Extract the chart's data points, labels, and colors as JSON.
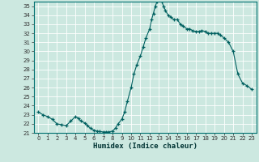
{
  "title": "",
  "xlabel": "Humidex (Indice chaleur)",
  "ylabel": "",
  "background_color": "#cce8e0",
  "grid_color": "#b8d8d0",
  "line_color": "#006060",
  "marker_color": "#006060",
  "ylim": [
    21,
    35.5
  ],
  "xlim": [
    -0.5,
    23.5
  ],
  "yticks": [
    21,
    22,
    23,
    24,
    25,
    26,
    27,
    28,
    29,
    30,
    31,
    32,
    33,
    34,
    35
  ],
  "xticks": [
    0,
    1,
    2,
    3,
    4,
    5,
    6,
    7,
    8,
    9,
    10,
    11,
    12,
    13,
    14,
    15,
    16,
    17,
    18,
    19,
    20,
    21,
    22,
    23
  ],
  "x": [
    0,
    0.5,
    1,
    1.5,
    2,
    2.5,
    3,
    3.5,
    4,
    4.3,
    4.6,
    5,
    5.3,
    5.6,
    6,
    6.3,
    6.6,
    7,
    7.3,
    7.6,
    8,
    8.3,
    8.6,
    9,
    9.3,
    9.6,
    10,
    10.3,
    10.6,
    11,
    11.3,
    11.6,
    12,
    12.2,
    12.4,
    12.6,
    12.8,
    13,
    13.15,
    13.3,
    13.5,
    13.7,
    14,
    14.3,
    14.6,
    15,
    15.3,
    15.6,
    16,
    16.3,
    16.6,
    17,
    17.3,
    17.6,
    18,
    18.3,
    18.6,
    19,
    19.3,
    19.6,
    20,
    20.5,
    21,
    21.5,
    22,
    22.5,
    23
  ],
  "y": [
    23.3,
    23.0,
    22.8,
    22.5,
    22.0,
    21.9,
    21.8,
    22.3,
    22.8,
    22.6,
    22.3,
    22.1,
    21.8,
    21.5,
    21.3,
    21.2,
    21.15,
    21.1,
    21.1,
    21.1,
    21.2,
    21.5,
    22.0,
    22.5,
    23.3,
    24.5,
    26.0,
    27.5,
    28.5,
    29.5,
    30.5,
    31.5,
    32.5,
    33.5,
    34.2,
    35.0,
    35.5,
    35.8,
    36.0,
    35.5,
    35.0,
    34.5,
    34.0,
    33.8,
    33.5,
    33.5,
    33.0,
    32.8,
    32.5,
    32.5,
    32.3,
    32.2,
    32.2,
    32.3,
    32.2,
    32.0,
    32.0,
    32.0,
    32.0,
    31.8,
    31.5,
    31.0,
    30.0,
    27.5,
    26.5,
    26.2,
    25.8
  ]
}
